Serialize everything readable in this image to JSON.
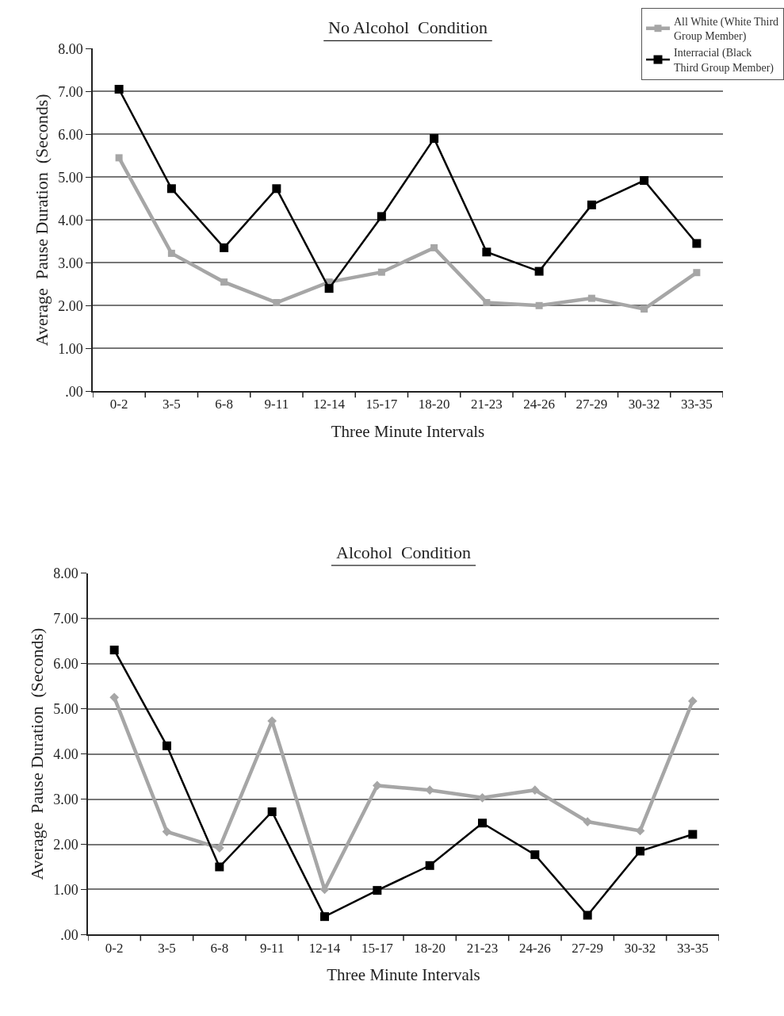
{
  "chart_data": [
    {
      "type": "line",
      "title": "No Alcohol  Condition",
      "xlabel": "Three Minute Intervals",
      "ylabel": "Average  Pause Duration  (Seconds)",
      "categories": [
        "0-2",
        "3-5",
        "6-8",
        "9-11",
        "12-14",
        "15-17",
        "18-20",
        "21-23",
        "24-26",
        "27-29",
        "30-32",
        "33-35"
      ],
      "series": [
        {
          "name": "All White (White Third Group Member)",
          "color": "#a6a6a6",
          "marker": "square",
          "values": [
            5.45,
            3.22,
            2.55,
            2.07,
            2.55,
            2.78,
            3.35,
            2.07,
            2.0,
            2.17,
            1.92,
            2.77
          ]
        },
        {
          "name": "Interracial (Black Third Group Member)",
          "color": "#000000",
          "marker": "square",
          "values": [
            7.05,
            4.73,
            3.35,
            4.73,
            2.4,
            4.08,
            5.9,
            3.25,
            2.8,
            4.35,
            4.92,
            3.45
          ]
        }
      ],
      "ylim": [
        0,
        8
      ],
      "yticks": [
        {
          "value": 0,
          "label": ".00"
        },
        {
          "value": 1,
          "label": "1.00"
        },
        {
          "value": 2,
          "label": "2.00"
        },
        {
          "value": 3,
          "label": "3.00"
        },
        {
          "value": 4,
          "label": "4.00"
        },
        {
          "value": 5,
          "label": "5.00"
        },
        {
          "value": 6,
          "label": "6.00"
        },
        {
          "value": 7,
          "label": "7.00"
        },
        {
          "value": 8,
          "label": "8.00"
        }
      ],
      "grid": "y",
      "legend": "top right"
    },
    {
      "type": "line",
      "title": "Alcohol  Condition",
      "xlabel": "Three Minute Intervals",
      "ylabel": "Average  Pause Duration  (Seconds)",
      "categories": [
        "0-2",
        "3-5",
        "6-8",
        "9-11",
        "12-14",
        "15-17",
        "18-20",
        "21-23",
        "24-26",
        "27-29",
        "30-32",
        "33-35"
      ],
      "series": [
        {
          "color": "#a6a6a6",
          "marker": "diamond",
          "values": [
            5.25,
            2.28,
            1.92,
            4.73,
            1.0,
            3.3,
            3.2,
            3.03,
            3.2,
            2.5,
            2.3,
            5.17
          ]
        },
        {
          "color": "#000000",
          "marker": "square",
          "values": [
            6.3,
            4.18,
            1.5,
            2.72,
            0.4,
            0.98,
            1.53,
            2.47,
            1.77,
            0.43,
            1.85,
            2.22
          ]
        }
      ],
      "ylim": [
        0,
        8
      ],
      "yticks": [
        {
          "value": 0,
          "label": ".00"
        },
        {
          "value": 1,
          "label": "1.00"
        },
        {
          "value": 2,
          "label": "2.00"
        },
        {
          "value": 3,
          "label": "3.00"
        },
        {
          "value": 4,
          "label": "4.00"
        },
        {
          "value": 5,
          "label": "5.00"
        },
        {
          "value": 6,
          "label": "6.00"
        },
        {
          "value": 7,
          "label": "7.00"
        },
        {
          "value": 8,
          "label": "8.00"
        }
      ],
      "grid": "y"
    }
  ]
}
